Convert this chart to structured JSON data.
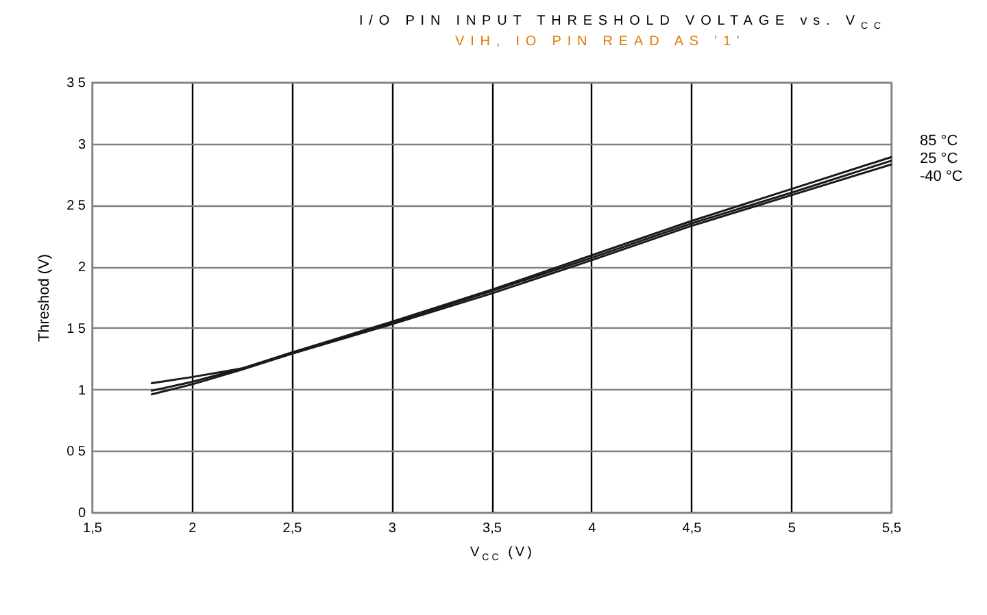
{
  "chart_data": {
    "type": "line",
    "title": "I/O PIN INPUT THRESHOLD VOLTAGE vs. V$_{CC}$",
    "subtitle": "VIH, IO PIN READ AS '1'",
    "xlabel": "V$_{CC}$ (V)",
    "ylabel": "Threshod (V)",
    "x": [
      1.8,
      2,
      2.25,
      2.5,
      3,
      3.5,
      4,
      4.5,
      5,
      5.5
    ],
    "series": [
      {
        "name": "85 °C",
        "color": "#1a1a1a",
        "values": [
          0.99,
          1.06,
          1.17,
          1.3,
          1.55,
          1.81,
          2.09,
          2.37,
          2.63,
          2.89
        ]
      },
      {
        "name": "25 °C",
        "color": "#1a1a1a",
        "values": [
          0.96,
          1.04,
          1.16,
          1.29,
          1.54,
          1.8,
          2.07,
          2.35,
          2.6,
          2.86
        ]
      },
      {
        "name": "-40 °C",
        "color": "#1a1a1a",
        "values": [
          1.05,
          1.1,
          1.17,
          1.29,
          1.53,
          1.78,
          2.05,
          2.33,
          2.58,
          2.83
        ]
      }
    ],
    "xlim": [
      1.5,
      5.5
    ],
    "xticks": [
      {
        "value": 1.5,
        "label": "1,5"
      },
      2,
      {
        "value": 2.5,
        "label": "2,5"
      },
      3,
      {
        "value": 3.5,
        "label": "3,5"
      },
      4,
      {
        "value": 4.5,
        "label": "4,5"
      },
      5,
      {
        "value": 5.5,
        "label": "5,5"
      }
    ],
    "ylim": [
      0,
      3.5
    ],
    "yticks": [
      0,
      {
        "value": 0.5,
        "label": "0 5"
      },
      1,
      {
        "value": 1.5,
        "label": "1 5"
      },
      2,
      {
        "value": 2.5,
        "label": "2 5"
      },
      3,
      {
        "value": 3.5,
        "label": "3 5"
      }
    ],
    "grid": true,
    "legend": "right",
    "line_style": "solid"
  }
}
